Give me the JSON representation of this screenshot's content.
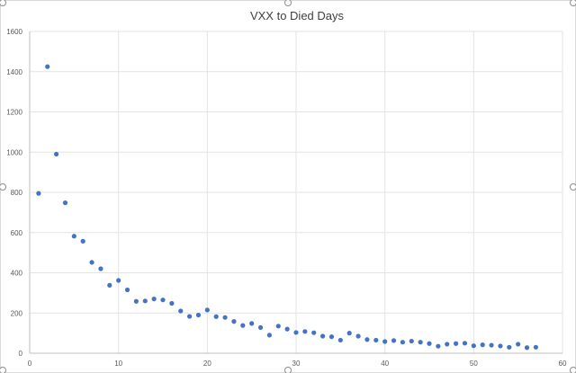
{
  "chart_data": {
    "type": "scatter",
    "title": "VXX to Died Days",
    "xlabel": "",
    "ylabel": "",
    "xlim": [
      0,
      60
    ],
    "ylim": [
      0,
      1600
    ],
    "xticks": [
      "0",
      "10",
      "20",
      "30",
      "40",
      "50",
      "60"
    ],
    "yticks": [
      "0",
      "200",
      "400",
      "600",
      "800",
      "1000",
      "1200",
      "1400",
      "1600"
    ],
    "grid": true,
    "legend": "none",
    "marker_color": "#4472C4",
    "points": [
      {
        "x": 1,
        "y": 795
      },
      {
        "x": 2,
        "y": 1425
      },
      {
        "x": 3,
        "y": 990
      },
      {
        "x": 4,
        "y": 748
      },
      {
        "x": 5,
        "y": 582
      },
      {
        "x": 6,
        "y": 557
      },
      {
        "x": 7,
        "y": 452
      },
      {
        "x": 8,
        "y": 420
      },
      {
        "x": 9,
        "y": 338
      },
      {
        "x": 10,
        "y": 362
      },
      {
        "x": 11,
        "y": 315
      },
      {
        "x": 12,
        "y": 258
      },
      {
        "x": 13,
        "y": 260
      },
      {
        "x": 14,
        "y": 270
      },
      {
        "x": 15,
        "y": 265
      },
      {
        "x": 16,
        "y": 248
      },
      {
        "x": 17,
        "y": 210
      },
      {
        "x": 18,
        "y": 183
      },
      {
        "x": 19,
        "y": 190
      },
      {
        "x": 20,
        "y": 215
      },
      {
        "x": 21,
        "y": 182
      },
      {
        "x": 22,
        "y": 178
      },
      {
        "x": 23,
        "y": 158
      },
      {
        "x": 24,
        "y": 138
      },
      {
        "x": 25,
        "y": 148
      },
      {
        "x": 26,
        "y": 128
      },
      {
        "x": 27,
        "y": 90
      },
      {
        "x": 28,
        "y": 135
      },
      {
        "x": 29,
        "y": 120
      },
      {
        "x": 30,
        "y": 103
      },
      {
        "x": 31,
        "y": 108
      },
      {
        "x": 32,
        "y": 102
      },
      {
        "x": 33,
        "y": 85
      },
      {
        "x": 34,
        "y": 82
      },
      {
        "x": 35,
        "y": 65
      },
      {
        "x": 36,
        "y": 100
      },
      {
        "x": 37,
        "y": 85
      },
      {
        "x": 38,
        "y": 68
      },
      {
        "x": 39,
        "y": 65
      },
      {
        "x": 40,
        "y": 58
      },
      {
        "x": 41,
        "y": 63
      },
      {
        "x": 42,
        "y": 55
      },
      {
        "x": 43,
        "y": 60
      },
      {
        "x": 44,
        "y": 55
      },
      {
        "x": 45,
        "y": 48
      },
      {
        "x": 46,
        "y": 35
      },
      {
        "x": 47,
        "y": 45
      },
      {
        "x": 48,
        "y": 48
      },
      {
        "x": 49,
        "y": 50
      },
      {
        "x": 50,
        "y": 37
      },
      {
        "x": 51,
        "y": 42
      },
      {
        "x": 52,
        "y": 40
      },
      {
        "x": 53,
        "y": 36
      },
      {
        "x": 54,
        "y": 30
      },
      {
        "x": 55,
        "y": 45
      },
      {
        "x": 56,
        "y": 28
      },
      {
        "x": 57,
        "y": 30
      }
    ]
  }
}
